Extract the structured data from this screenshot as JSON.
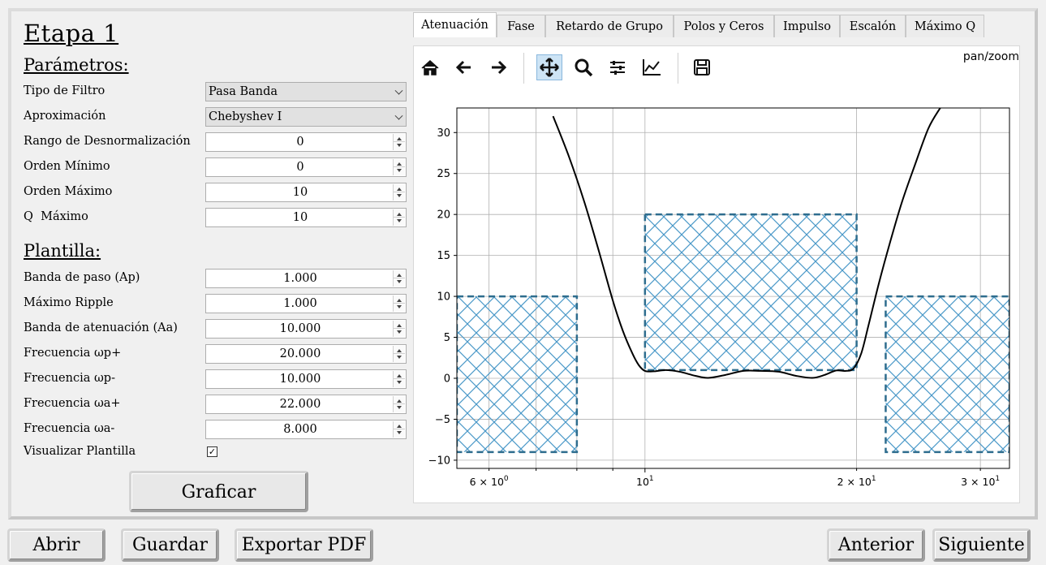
{
  "stage": {
    "title": "Etapa 1"
  },
  "params": {
    "title": "Parámetros:",
    "filter_type": {
      "label": "Tipo de Filtro",
      "value": "Pasa Banda"
    },
    "approximation": {
      "label": "Aproximación",
      "value": "Chebyshev I"
    },
    "denorm_range": {
      "label": "Rango de Desnormalización",
      "value": "0"
    },
    "min_order": {
      "label": "Orden Mínimo",
      "value": "0"
    },
    "max_order": {
      "label": "Orden Máximo",
      "value": "10"
    },
    "max_q": {
      "label": "Q  Máximo",
      "value": "10"
    }
  },
  "template": {
    "title": "Plantilla:",
    "ap": {
      "label": "Banda de paso (Ap)",
      "value": "1.000"
    },
    "ripple": {
      "label": "Máximo Ripple",
      "value": "1.000"
    },
    "aa": {
      "label": "Banda de atenuación (Aa)",
      "value": "10.000"
    },
    "wp_plus": {
      "label": "Frecuencia ωp+",
      "value": "20.000"
    },
    "wp_minus": {
      "label": "Frecuencia ωp-",
      "value": "10.000"
    },
    "wa_plus": {
      "label": "Frecuencia ωa+",
      "value": "22.000"
    },
    "wa_minus": {
      "label": "Frecuencia ωa-",
      "value": "8.000"
    },
    "show_template": {
      "label": "Visualizar Plantilla",
      "checked": true,
      "mark": "✓"
    }
  },
  "buttons": {
    "plot": "Graficar",
    "open": "Abrir",
    "save": "Guardar",
    "export_pdf": "Exportar PDF",
    "previous": "Anterior",
    "next": "Siguiente"
  },
  "tabs": [
    "Atenuación",
    "Fase",
    "Retardo de Grupo",
    "Polos y Ceros",
    "Impulso",
    "Escalón",
    "Máximo Q"
  ],
  "active_tab": "Atenuación",
  "toolbar": {
    "mode": "pan/zoom",
    "icons": [
      "home-icon",
      "back-arrow-icon",
      "forward-arrow-icon",
      "pan-icon",
      "zoom-icon",
      "subplots-icon",
      "edit-axis-icon",
      "save-icon"
    ]
  },
  "colors": {
    "template_fill": "#4a98c8",
    "template_edge": "#2e6d8e",
    "curve": "#000000"
  },
  "chart_data": {
    "type": "line",
    "x_scale": "log",
    "xlim": [
      5.4,
      33
    ],
    "ylim": [
      -11,
      33
    ],
    "grid": true,
    "y_ticks": [
      -10,
      -5,
      0,
      5,
      10,
      15,
      20,
      25,
      30
    ],
    "x_major_ticks": [
      {
        "value": 10,
        "label": "10"
      }
    ],
    "x_minor_ticks": [
      {
        "value": 6,
        "label": "6 × 10",
        "exp": "0"
      },
      {
        "value": 7,
        "label": ""
      },
      {
        "value": 8,
        "label": ""
      },
      {
        "value": 9,
        "label": ""
      },
      {
        "value": 20,
        "label": "2 × 10",
        "exp": "1"
      },
      {
        "value": 30,
        "label": "3 × 10",
        "exp": "1"
      }
    ],
    "major_exp": "1",
    "template_regions": [
      {
        "x0": 5.4,
        "x1": 8,
        "y0": -9,
        "y1": 10
      },
      {
        "x0": 10,
        "x1": 20,
        "y0": 1,
        "y1": 20
      },
      {
        "x0": 22,
        "x1": 33,
        "y0": -9,
        "y1": 10
      }
    ],
    "series": [
      {
        "x": [
          7.4,
          7.8,
          8.2,
          8.6,
          9.0,
          9.3,
          9.6,
          9.8,
          10.0,
          10.3,
          10.7,
          11.2,
          11.8,
          12.3,
          13.0,
          13.8,
          14.6,
          15.5,
          16.4,
          17.3,
          18.0,
          18.7,
          19.3,
          19.8,
          20.3,
          20.8,
          21.5,
          22.3,
          23.2,
          24.2,
          25.3,
          26.3
        ],
        "y": [
          32,
          27,
          21.5,
          15.5,
          9.5,
          5.8,
          3.0,
          1.6,
          0.9,
          0.85,
          1.0,
          0.8,
          0.3,
          0.05,
          0.4,
          0.9,
          0.9,
          0.8,
          0.3,
          0.05,
          0.4,
          0.95,
          0.9,
          1.2,
          3.0,
          6.5,
          11.5,
          16.5,
          21.5,
          26.0,
          30.5,
          33
        ]
      }
    ]
  }
}
